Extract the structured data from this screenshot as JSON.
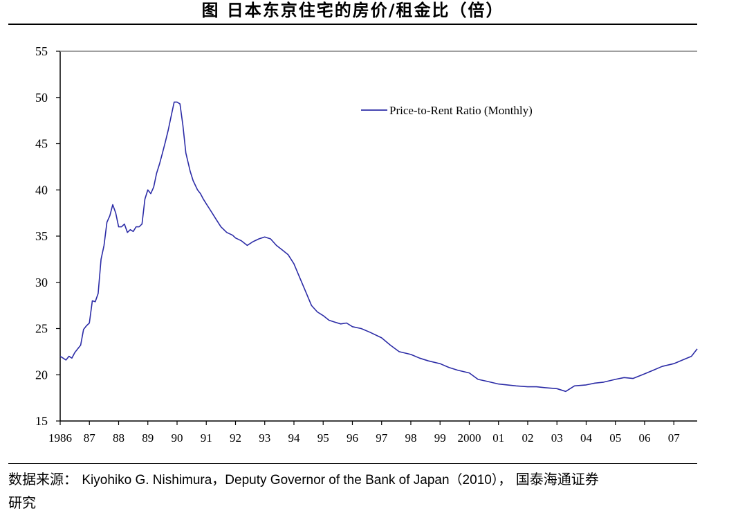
{
  "title": "图  日本东京住宅的房价/租金比（倍）",
  "source": {
    "prefix": "数据来源：",
    "text": "Kiyohiko G. Nishimura，Deputy Governor of the Bank of Japan（2010），",
    "suffix": "国泰海通证券",
    "line2": "研究"
  },
  "chart_data": {
    "type": "line",
    "title": "图  日本东京住宅的房价/租金比（倍）",
    "xlabel": "",
    "ylabel": "",
    "ylim": [
      15,
      55
    ],
    "yticks": [
      15,
      20,
      25,
      30,
      35,
      40,
      45,
      50,
      55
    ],
    "xlim": [
      1986,
      2007.8
    ],
    "xticks": [
      {
        "value": 1986,
        "label": "1986"
      },
      {
        "value": 1987,
        "label": "87"
      },
      {
        "value": 1988,
        "label": "88"
      },
      {
        "value": 1989,
        "label": "89"
      },
      {
        "value": 1990,
        "label": "90"
      },
      {
        "value": 1991,
        "label": "91"
      },
      {
        "value": 1992,
        "label": "92"
      },
      {
        "value": 1993,
        "label": "93"
      },
      {
        "value": 1994,
        "label": "94"
      },
      {
        "value": 1995,
        "label": "95"
      },
      {
        "value": 1996,
        "label": "96"
      },
      {
        "value": 1997,
        "label": "97"
      },
      {
        "value": 1998,
        "label": "98"
      },
      {
        "value": 1999,
        "label": "99"
      },
      {
        "value": 2000,
        "label": "2000"
      },
      {
        "value": 2001,
        "label": "01"
      },
      {
        "value": 2002,
        "label": "02"
      },
      {
        "value": 2003,
        "label": "03"
      },
      {
        "value": 2004,
        "label": "04"
      },
      {
        "value": 2005,
        "label": "05"
      },
      {
        "value": 2006,
        "label": "06"
      },
      {
        "value": 2007,
        "label": "07"
      }
    ],
    "grid": false,
    "legend": "top-center",
    "series": [
      {
        "name": "Price-to-Rent Ratio (Monthly)",
        "color": "#2b2ba6",
        "x": [
          1986.0,
          1986.1,
          1986.2,
          1986.3,
          1986.4,
          1986.5,
          1986.6,
          1986.7,
          1986.8,
          1986.9,
          1987.0,
          1987.1,
          1987.2,
          1987.3,
          1987.4,
          1987.5,
          1987.6,
          1987.7,
          1987.8,
          1987.9,
          1988.0,
          1988.1,
          1988.2,
          1988.3,
          1988.4,
          1988.5,
          1988.6,
          1988.7,
          1988.8,
          1988.9,
          1989.0,
          1989.1,
          1989.2,
          1989.3,
          1989.4,
          1989.5,
          1989.6,
          1989.7,
          1989.8,
          1989.9,
          1990.0,
          1990.1,
          1990.2,
          1990.3,
          1990.45,
          1990.55,
          1990.7,
          1990.8,
          1990.9,
          1991.0,
          1991.1,
          1991.2,
          1991.3,
          1991.5,
          1991.7,
          1991.9,
          1992.0,
          1992.2,
          1992.4,
          1992.6,
          1992.8,
          1993.0,
          1993.2,
          1993.4,
          1993.6,
          1993.8,
          1994.0,
          1994.2,
          1994.4,
          1994.6,
          1994.8,
          1995.0,
          1995.2,
          1995.4,
          1995.6,
          1995.8,
          1996.0,
          1996.3,
          1996.6,
          1997.0,
          1997.3,
          1997.6,
          1998.0,
          1998.3,
          1998.6,
          1999.0,
          1999.3,
          1999.6,
          2000.0,
          2000.3,
          2000.6,
          2001.0,
          2001.3,
          2001.6,
          2002.0,
          2002.3,
          2002.6,
          2003.0,
          2003.3,
          2003.6,
          2004.0,
          2004.3,
          2004.6,
          2005.0,
          2005.3,
          2005.6,
          2006.0,
          2006.3,
          2006.6,
          2007.0,
          2007.3,
          2007.6,
          2007.8
        ],
        "values": [
          22.0,
          21.8,
          21.6,
          22.0,
          21.8,
          22.4,
          22.8,
          23.2,
          24.9,
          25.3,
          25.6,
          28.0,
          27.9,
          28.8,
          32.5,
          34.0,
          36.5,
          37.2,
          38.4,
          37.5,
          36.0,
          36.0,
          36.3,
          35.4,
          35.7,
          35.5,
          36.0,
          36.0,
          36.3,
          39.0,
          40.0,
          39.6,
          40.3,
          41.8,
          42.8,
          44.0,
          45.2,
          46.5,
          48.0,
          49.5,
          49.5,
          49.3,
          47.0,
          44.0,
          42.0,
          41.0,
          40.0,
          39.6,
          39.0,
          38.5,
          38.0,
          37.5,
          37.0,
          36.0,
          35.4,
          35.1,
          34.8,
          34.5,
          34.0,
          34.4,
          34.7,
          34.9,
          34.7,
          34.0,
          33.5,
          33.0,
          32.0,
          30.5,
          29.0,
          27.5,
          26.8,
          26.4,
          25.9,
          25.7,
          25.5,
          25.6,
          25.2,
          25.0,
          24.6,
          24.0,
          23.2,
          22.5,
          22.2,
          21.8,
          21.5,
          21.2,
          20.8,
          20.5,
          20.2,
          19.5,
          19.3,
          19.0,
          18.9,
          18.8,
          18.7,
          18.7,
          18.6,
          18.5,
          18.2,
          18.8,
          18.9,
          19.1,
          19.2,
          19.5,
          19.7,
          19.6,
          20.1,
          20.5,
          20.9,
          21.2,
          21.6,
          22.0,
          22.8
        ]
      }
    ]
  }
}
